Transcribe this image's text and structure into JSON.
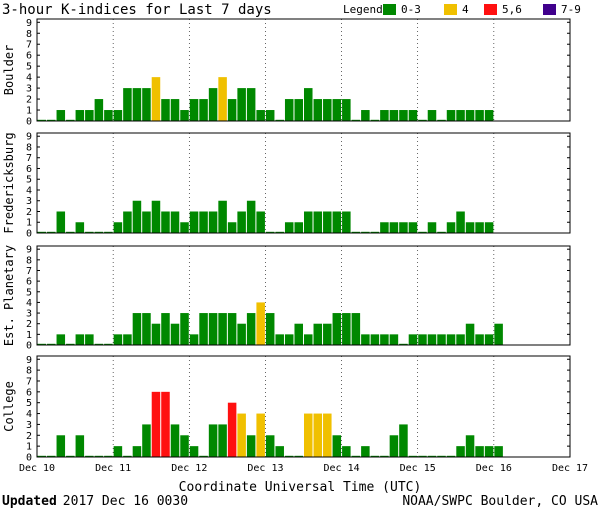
{
  "title": "3-hour K-indices for Last 7 days",
  "legend": {
    "label": "Legend:",
    "items": [
      {
        "label": "0-3",
        "color": "#008800"
      },
      {
        "label": "4",
        "color": "#f0c000"
      },
      {
        "label": "5,6",
        "color": "#ff1010"
      },
      {
        "label": "7-9",
        "color": "#40008c"
      }
    ]
  },
  "xlabel": "Coordinate Universal Time (UTC)",
  "footer": {
    "updated_label": "Updated",
    "updated_value": "2017 Dec 16 0030",
    "credit": "NOAA/SWPC Boulder, CO USA"
  },
  "chart_data": {
    "type": "bar",
    "x_tick_labels": [
      "Dec 10",
      "Dec 11",
      "Dec 12",
      "Dec 13",
      "Dec 14",
      "Dec 15",
      "Dec 16",
      "Dec 17"
    ],
    "y_tick_labels": [
      "0",
      "1",
      "2",
      "3",
      "4",
      "5",
      "6",
      "7",
      "8",
      "9"
    ],
    "ylim": [
      0,
      9
    ],
    "slots_per_day": 8,
    "days": 7,
    "color_rule": {
      "0-3": "#008800",
      "4": "#f0c000",
      "5-6": "#ff1010",
      "7-9": "#40008c"
    },
    "series": [
      {
        "name": "Boulder",
        "values": [
          0,
          0,
          1,
          0,
          1,
          1,
          2,
          1,
          1,
          3,
          3,
          3,
          4,
          2,
          2,
          1,
          2,
          2,
          3,
          4,
          2,
          3,
          3,
          1,
          1,
          0,
          2,
          2,
          3,
          2,
          2,
          2,
          2,
          0,
          1,
          0,
          1,
          1,
          1,
          1,
          0,
          1,
          0,
          1,
          1,
          1,
          1,
          1
        ]
      },
      {
        "name": "Fredericksburg",
        "values": [
          0,
          0,
          2,
          0,
          1,
          0,
          0,
          0,
          1,
          2,
          3,
          2,
          3,
          2,
          2,
          1,
          2,
          2,
          2,
          3,
          1,
          2,
          3,
          2,
          0,
          0,
          1,
          1,
          2,
          2,
          2,
          2,
          2,
          0,
          0,
          0,
          1,
          1,
          1,
          1,
          0,
          1,
          0,
          1,
          2,
          1,
          1,
          1
        ]
      },
      {
        "name": "Est. Planetary",
        "values": [
          0,
          0,
          1,
          0,
          1,
          1,
          0,
          0,
          1,
          1,
          3,
          3,
          2,
          3,
          2,
          3,
          1,
          3,
          3,
          3,
          3,
          2,
          3,
          4,
          3,
          1,
          1,
          2,
          1,
          2,
          2,
          3,
          3,
          3,
          1,
          1,
          1,
          1,
          0,
          1,
          1,
          1,
          1,
          1,
          1,
          2,
          1,
          1,
          2
        ]
      },
      {
        "name": "College",
        "values": [
          0,
          0,
          2,
          0,
          2,
          0,
          0,
          0,
          1,
          0,
          1,
          3,
          6,
          6,
          3,
          2,
          1,
          0,
          3,
          3,
          5,
          4,
          2,
          4,
          2,
          1,
          0,
          0,
          4,
          4,
          4,
          2,
          1,
          0,
          1,
          0,
          0,
          2,
          3,
          0,
          0,
          0,
          0,
          0,
          1,
          2,
          1,
          1,
          1
        ]
      }
    ]
  }
}
